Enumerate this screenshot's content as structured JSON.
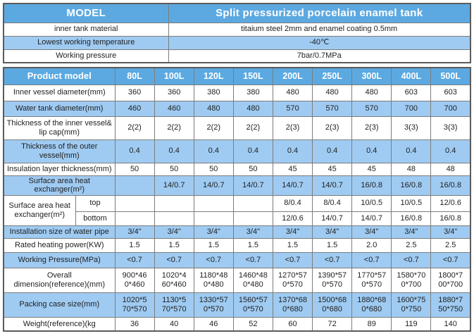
{
  "colors": {
    "header_bg": "#5ca9e1",
    "row_alt_bg": "#9fcbf2",
    "row_bg": "#ffffff",
    "header_text": "#ffffff",
    "cell_text": "#1f1f1f",
    "border": "#7c7c7c",
    "outer_border": "#5b5b5b"
  },
  "spec_table": {
    "header": {
      "label": "MODEL",
      "value": "Split pressurized porcelain enamel tank"
    },
    "rows": [
      {
        "label": "inner tank material",
        "value": "titaium steel 2mm and enamel coating 0.5mm"
      },
      {
        "label": "Lowest working temperature",
        "value": "-40℃"
      },
      {
        "label": "Working pressure",
        "value": "7bar/0.7MPa"
      }
    ]
  },
  "model_table": {
    "header_label": "Product model",
    "models": [
      "80L",
      "100L",
      "120L",
      "150L",
      "200L",
      "250L",
      "300L",
      "400L",
      "500L"
    ],
    "rows": [
      {
        "label": "Inner vessel diameter(mm)",
        "values": [
          "360",
          "360",
          "380",
          "380",
          "480",
          "480",
          "480",
          "603",
          "603"
        ]
      },
      {
        "label": "Water tank diameter(mm)",
        "values": [
          "460",
          "460",
          "480",
          "480",
          "570",
          "570",
          "570",
          "700",
          "700"
        ]
      },
      {
        "label": "Thickness of the inner vessel&\nlip cap(mm)",
        "values": [
          "2(2)",
          "2(2)",
          "2(2)",
          "2(2)",
          "2(3)",
          "2(3)",
          "2(3)",
          "3(3)",
          "3(3)"
        ]
      },
      {
        "label": "Thickness of the outer\nvessel(mm)",
        "values": [
          "0.4",
          "0.4",
          "0.4",
          "0.4",
          "0.4",
          "0.4",
          "0.4",
          "0.4",
          "0.4"
        ]
      },
      {
        "label": "Insulation layer thickness(mm)",
        "values": [
          "50",
          "50",
          "50",
          "50",
          "45",
          "45",
          "45",
          "48",
          "48"
        ]
      },
      {
        "label": "Surface area heat exchanger(m²)",
        "values": [
          "",
          "14/0.7",
          "14/0.7",
          "14/0.7",
          "14/0.7",
          "14/0.7",
          "16/0.8",
          "16/0.8",
          "16/0.8"
        ]
      },
      {
        "label": "Installation size of water pipe",
        "values": [
          "3/4\"",
          "3/4\"",
          "3/4\"",
          "3/4\"",
          "3/4\"",
          "3/4\"",
          "3/4\"",
          "3/4\"",
          "3/4\""
        ]
      },
      {
        "label": "Rated heating power(KW)",
        "values": [
          "1.5",
          "1.5",
          "1.5",
          "1.5",
          "1.5",
          "1.5",
          "2.0",
          "2.5",
          "2.5"
        ]
      },
      {
        "label": "Working Pressure(MPa)",
        "values": [
          "<0.7",
          "<0.7",
          "<0.7",
          "<0.7",
          "<0.7",
          "<0.7",
          "<0.7",
          "<0.7",
          "<0.7"
        ]
      },
      {
        "label": "Overall\ndimension(reference)(mm)",
        "values": [
          "900*46\n0*460",
          "1020*4\n60*460",
          "1180*48\n0*480",
          "1460*48\n0*480",
          "1270*57\n0*570",
          "1390*57\n0*570",
          "1770*57\n0*570",
          "1580*70\n0*700",
          "1800*7\n00*700"
        ]
      },
      {
        "label": "Packing case size(mm)",
        "values": [
          "1020*5\n70*570",
          "1130*5\n70*570",
          "1330*57\n0*570",
          "1560*57\n0*570",
          "1370*68\n0*680",
          "1500*68\n0*680",
          "1880*68\n0*680",
          "1600*75\n0*750",
          "1880*7\n50*750"
        ]
      },
      {
        "label": "Weight(reference)(kg",
        "values": [
          "36",
          "40",
          "46",
          "52",
          "60",
          "72",
          "89",
          "119",
          "140"
        ]
      }
    ],
    "split_row": {
      "label": "Surface area heat\nexchanger(m²)",
      "sub_rows": [
        {
          "sub_label": "top",
          "values": [
            "",
            "",
            "",
            "",
            "8/0.4",
            "8/0.4",
            "10/0.5",
            "10/0.5",
            "12/0.6"
          ]
        },
        {
          "sub_label": "bottom",
          "values": [
            "",
            "",
            "",
            "",
            "12/0.6",
            "14/0.7",
            "14/0.7",
            "16/0.8",
            "16/0.8"
          ]
        }
      ]
    }
  }
}
